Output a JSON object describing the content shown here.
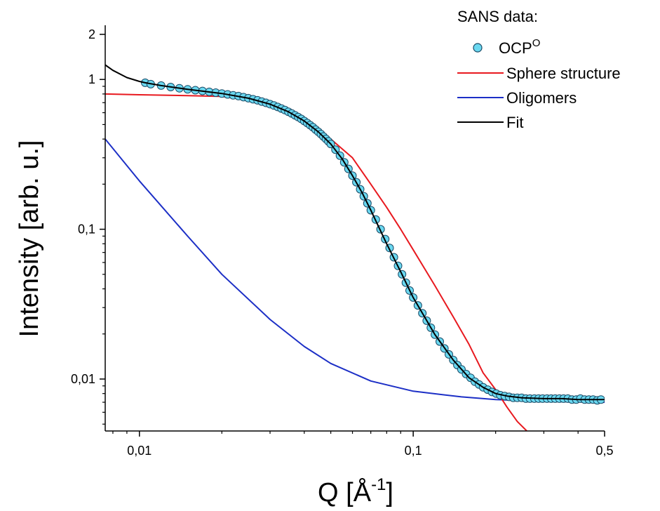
{
  "chart_data": {
    "type": "line",
    "xscale": "log",
    "yscale": "log",
    "xlim": [
      0.0075,
      0.5
    ],
    "ylim": [
      0.0045,
      2.3
    ],
    "x_ticks": [
      {
        "value": 0.01,
        "label": "0,01"
      },
      {
        "value": 0.1,
        "label": "0,1"
      },
      {
        "value": 0.5,
        "label": "0,5"
      }
    ],
    "y_ticks": [
      {
        "value": 0.01,
        "label": "0,01"
      },
      {
        "value": 0.1,
        "label": "0,1"
      },
      {
        "value": 1,
        "label": "1"
      },
      {
        "value": 2,
        "label": "2"
      }
    ],
    "xlabel": "Q [Å",
    "xlabel_sup": "-1",
    "xlabel_end": "]",
    "ylabel": "Intensity [arb. u.]",
    "legend": {
      "title": "SANS data:",
      "placement": "top-right",
      "entries": [
        {
          "label": "OCP",
          "sup": "O",
          "kind": "marker",
          "color": "#6ad8f0"
        },
        {
          "label": "Sphere structure",
          "kind": "line",
          "color": "#e8191f"
        },
        {
          "label": "Oligomers",
          "kind": "line",
          "color": "#1c2fc6"
        },
        {
          "label": "Fit",
          "kind": "line",
          "color": "#000000"
        }
      ]
    },
    "series": [
      {
        "name": "OCP",
        "kind": "scatter",
        "color": "#6ad8f0",
        "edge_color": "#1a4a66",
        "x": [
          0.0105,
          0.011,
          0.012,
          0.013,
          0.014,
          0.015,
          0.016,
          0.017,
          0.018,
          0.019,
          0.02,
          0.021,
          0.022,
          0.023,
          0.024,
          0.025,
          0.026,
          0.027,
          0.028,
          0.029,
          0.03,
          0.031,
          0.032,
          0.033,
          0.034,
          0.035,
          0.036,
          0.037,
          0.038,
          0.039,
          0.04,
          0.041,
          0.042,
          0.043,
          0.044,
          0.045,
          0.046,
          0.047,
          0.048,
          0.049,
          0.05,
          0.052,
          0.054,
          0.056,
          0.058,
          0.06,
          0.062,
          0.064,
          0.066,
          0.068,
          0.07,
          0.073,
          0.076,
          0.079,
          0.082,
          0.085,
          0.088,
          0.091,
          0.094,
          0.097,
          0.1,
          0.104,
          0.108,
          0.112,
          0.116,
          0.12,
          0.125,
          0.13,
          0.135,
          0.14,
          0.145,
          0.15,
          0.156,
          0.162,
          0.168,
          0.174,
          0.18,
          0.187,
          0.194,
          0.201,
          0.208,
          0.216,
          0.224,
          0.232,
          0.24,
          0.249,
          0.258,
          0.267,
          0.277,
          0.287,
          0.297,
          0.308,
          0.319,
          0.33,
          0.342,
          0.354,
          0.367,
          0.38,
          0.394,
          0.408,
          0.423,
          0.438,
          0.454,
          0.47,
          0.485
        ],
        "y": [
          0.95,
          0.93,
          0.91,
          0.89,
          0.874,
          0.86,
          0.848,
          0.838,
          0.826,
          0.816,
          0.806,
          0.795,
          0.784,
          0.774,
          0.762,
          0.75,
          0.738,
          0.726,
          0.712,
          0.698,
          0.684,
          0.67,
          0.655,
          0.64,
          0.625,
          0.609,
          0.593,
          0.577,
          0.561,
          0.545,
          0.528,
          0.512,
          0.496,
          0.48,
          0.463,
          0.447,
          0.432,
          0.416,
          0.401,
          0.386,
          0.371,
          0.34,
          0.31,
          0.28,
          0.253,
          0.228,
          0.206,
          0.185,
          0.166,
          0.149,
          0.134,
          0.116,
          0.1,
          0.086,
          0.075,
          0.065,
          0.057,
          0.05,
          0.044,
          0.039,
          0.035,
          0.031,
          0.0275,
          0.0245,
          0.022,
          0.0198,
          0.0178,
          0.016,
          0.0146,
          0.0134,
          0.0124,
          0.0116,
          0.0108,
          0.0102,
          0.0096,
          0.0092,
          0.0088,
          0.0085,
          0.0082,
          0.008,
          0.0078,
          0.0077,
          0.0076,
          0.0075,
          0.0075,
          0.0075,
          0.0074,
          0.0074,
          0.0074,
          0.0074,
          0.0074,
          0.0074,
          0.0074,
          0.0074,
          0.0074,
          0.0074,
          0.0074,
          0.0073,
          0.0073,
          0.0074,
          0.0073,
          0.0073,
          0.0073,
          0.0072,
          0.0073
        ]
      },
      {
        "name": "Sphere structure",
        "kind": "line",
        "color": "#e8191f",
        "x": [
          0.0075,
          0.01,
          0.015,
          0.02,
          0.025,
          0.03,
          0.035,
          0.04,
          0.05,
          0.06,
          0.07,
          0.08,
          0.09,
          0.1,
          0.12,
          0.14,
          0.16,
          0.18,
          0.2,
          0.22,
          0.24,
          0.26
        ],
        "y": [
          0.8,
          0.79,
          0.78,
          0.77,
          0.73,
          0.68,
          0.6,
          0.53,
          0.4,
          0.3,
          0.2,
          0.14,
          0.1,
          0.073,
          0.042,
          0.026,
          0.017,
          0.011,
          0.0085,
          0.0065,
          0.0052,
          0.0045
        ]
      },
      {
        "name": "Oligomers",
        "kind": "line",
        "color": "#1c2fc6",
        "x": [
          0.0075,
          0.01,
          0.015,
          0.02,
          0.03,
          0.04,
          0.05,
          0.07,
          0.1,
          0.15,
          0.2,
          0.3,
          0.5
        ],
        "y": [
          0.4,
          0.21,
          0.09,
          0.05,
          0.025,
          0.0165,
          0.0127,
          0.0097,
          0.0083,
          0.0076,
          0.0073,
          0.0071,
          0.007
        ]
      },
      {
        "name": "Fit",
        "kind": "line",
        "color": "#000000",
        "x": [
          0.0075,
          0.008,
          0.009,
          0.01,
          0.0105,
          0.012,
          0.015,
          0.02,
          0.025,
          0.03,
          0.035,
          0.04,
          0.045,
          0.05,
          0.055,
          0.06,
          0.065,
          0.07,
          0.08,
          0.09,
          0.1,
          0.11,
          0.12,
          0.14,
          0.16,
          0.18,
          0.2,
          0.22,
          0.25,
          0.3,
          0.35,
          0.4,
          0.5
        ],
        "y": [
          1.25,
          1.15,
          1.03,
          0.97,
          0.95,
          0.91,
          0.86,
          0.806,
          0.75,
          0.684,
          0.609,
          0.528,
          0.447,
          0.371,
          0.295,
          0.228,
          0.176,
          0.134,
          0.08,
          0.052,
          0.035,
          0.026,
          0.0198,
          0.0134,
          0.0102,
          0.0088,
          0.008,
          0.0077,
          0.0075,
          0.0074,
          0.0074,
          0.0073,
          0.0073
        ]
      }
    ]
  }
}
